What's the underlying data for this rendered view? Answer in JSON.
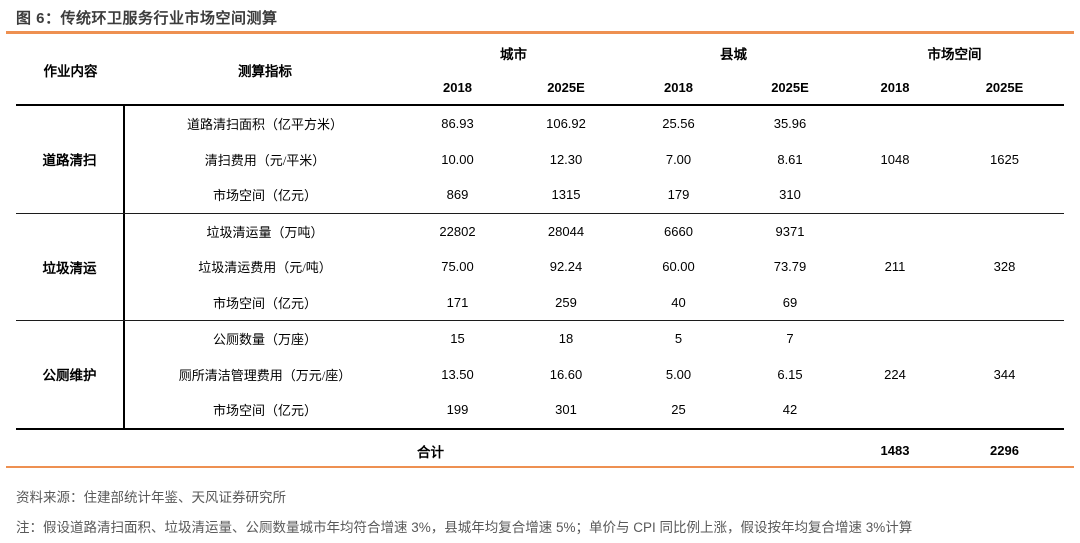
{
  "title": "图 6：传统环卫服务行业市场空间测算",
  "colors": {
    "accent_orange": "#EE9051",
    "title_gray": "#3c3c3c",
    "footer_gray": "#595959"
  },
  "header": {
    "job": "作业内容",
    "indicator": "测算指标",
    "groups": [
      {
        "label": "城市",
        "years": [
          "2018",
          "2025E"
        ]
      },
      {
        "label": "县城",
        "years": [
          "2018",
          "2025E"
        ]
      },
      {
        "label": "市场空间",
        "years": [
          "2018",
          "2025E"
        ]
      }
    ]
  },
  "table": {
    "groups": [
      {
        "label": "道路清扫",
        "rows": [
          {
            "indicator": "道路清扫面积（亿平方米）",
            "values": [
              "86.93",
              "106.92",
              "25.56",
              "35.96"
            ]
          },
          {
            "indicator": "清扫费用（元/平米）",
            "values": [
              "10.00",
              "12.30",
              "7.00",
              "8.61"
            ]
          },
          {
            "indicator": "市场空间（亿元）",
            "values": [
              "869",
              "1315",
              "179",
              "310"
            ]
          }
        ],
        "market_space": [
          "1048",
          "1625"
        ]
      },
      {
        "label": "垃圾清运",
        "rows": [
          {
            "indicator": "垃圾清运量（万吨）",
            "values": [
              "22802",
              "28044",
              "6660",
              "9371"
            ]
          },
          {
            "indicator": "垃圾清运费用（元/吨）",
            "values": [
              "75.00",
              "92.24",
              "60.00",
              "73.79"
            ]
          },
          {
            "indicator": "市场空间（亿元）",
            "values": [
              "171",
              "259",
              "40",
              "69"
            ]
          }
        ],
        "market_space": [
          "211",
          "328"
        ]
      },
      {
        "label": "公厕维护",
        "rows": [
          {
            "indicator": "公厕数量（万座）",
            "values": [
              "15",
              "18",
              "5",
              "7"
            ]
          },
          {
            "indicator": "厕所清洁管理费用（万元/座）",
            "values": [
              "13.50",
              "16.60",
              "5.00",
              "6.15"
            ]
          },
          {
            "indicator": "市场空间（亿元）",
            "values": [
              "199",
              "301",
              "25",
              "42"
            ]
          }
        ],
        "market_space": [
          "224",
          "344"
        ]
      }
    ],
    "total": {
      "label": "合计",
      "values": [
        "1483",
        "2296"
      ]
    }
  },
  "footer": {
    "source": "资料来源：住建部统计年鉴、天风证券研究所",
    "note": "注：假设道路清扫面积、垃圾清运量、公厕数量城市年均符合增速 3%，县城年均复合增速 5%；单价与 CPI 同比例上涨，假设按年均复合增速 3%计算"
  }
}
